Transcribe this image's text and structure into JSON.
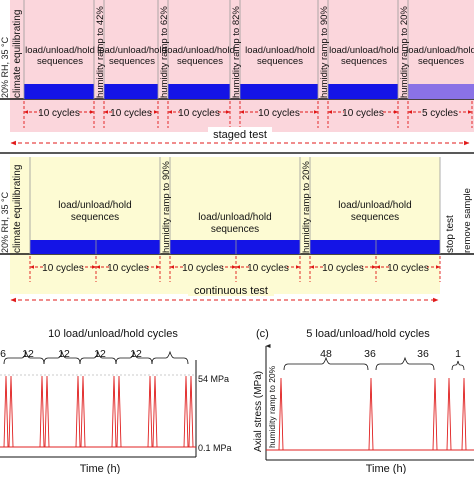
{
  "staged": {
    "climate_label": "climate equilibrating",
    "left_edge_label": "20% RH, 35 °C",
    "sequences_label": [
      "load/unload/hold",
      "sequences"
    ],
    "ramps": [
      "humidity ramp to 42%",
      "humidity ramp to 62%",
      "humidity ramp to 82%",
      "humidity ramp to 90%",
      "humidity ramp to 20%"
    ],
    "cycles": [
      "10 cycles",
      "10 cycles",
      "10 cycles",
      "10 cycles",
      "10 cycles",
      "5 cycles"
    ],
    "caption": "staged test"
  },
  "continuous": {
    "climate_label": "climate equilibrating",
    "left_edge_label": "20% RH, 35 °C",
    "sequences_label": [
      "load/unload/hold",
      "sequences"
    ],
    "ramps": [
      "humidity ramp to 90%",
      "humidity ramp to 20%"
    ],
    "cycles": [
      "10 cycles",
      "10 cycles",
      "10 cycles",
      "10 cycles",
      "10 cycles",
      "10 cycles"
    ],
    "stop_label": "stop test",
    "remove_label": "remove sample",
    "caption": "continuous test"
  },
  "panel_b": {
    "title": "10 load/unload/hold cycles",
    "intervals": [
      "6",
      "12",
      "12",
      "12",
      "12"
    ],
    "upper_level": "54 MPa",
    "lower_level": "0.1 MPa",
    "xlabel": "Time (h)"
  },
  "panel_c": {
    "panel_label": "(c)",
    "title": "5 load/unload/hold cycles",
    "intervals": [
      "48",
      "36",
      "36",
      "1"
    ],
    "ylabel": "Axial stress (MPa)",
    "ramp_label": "humidity ramp to 20%",
    "xlabel": "Time (h)"
  },
  "colors": {
    "staged_bg": "#fbd6dc",
    "continuous_bg": "#fdfbd3",
    "load_bar": "#1414e6",
    "short_bar": "#8a72e6",
    "dashed_red": "#e01818",
    "pulse": "#e02020"
  }
}
